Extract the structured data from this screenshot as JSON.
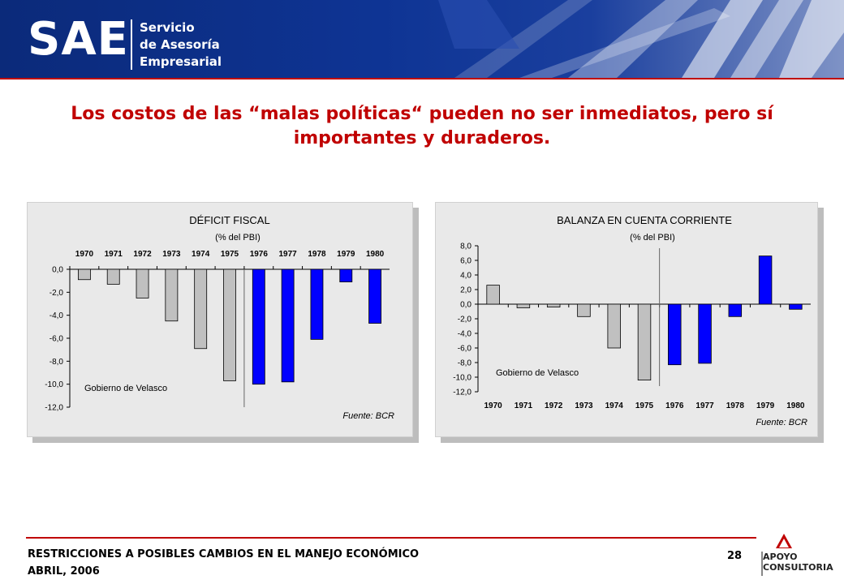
{
  "header": {
    "logo": "SAE",
    "subtitle_lines": [
      "Servicio",
      "de Asesoría",
      "Empresarial"
    ],
    "banner_color": "#0e3494"
  },
  "title": "Los costos de las “malas políticas“ pueden no ser inmediatos, pero sí importantes y duraderos.",
  "chart_data": [
    {
      "type": "bar",
      "title": "DÉFICIT FISCAL",
      "subtitle": "(% del PBI)",
      "categories": [
        "1970",
        "1971",
        "1972",
        "1973",
        "1974",
        "1975",
        "1976",
        "1977",
        "1978",
        "1979",
        "1980"
      ],
      "values": [
        -0.9,
        -1.3,
        -2.5,
        -4.5,
        -6.9,
        -9.7,
        -10.0,
        -9.8,
        -6.1,
        -1.1,
        -4.7
      ],
      "highlight_from": "1976",
      "colors": {
        "base": "#c0c0c0",
        "highlight": "#0000ff"
      },
      "ylim": [
        -12.0,
        0.0
      ],
      "yticks": [
        "0,0",
        "-2,0",
        "-4,0",
        "-6,0",
        "-8,0",
        "-10,0",
        "-12,0"
      ],
      "tick_values": [
        0,
        -2,
        -4,
        -6,
        -8,
        -10,
        -12
      ],
      "category_axis": "top",
      "divider_after": "1975",
      "annotation": "Gobierno de Velasco",
      "source": "Fuente: BCR",
      "grid": false
    },
    {
      "type": "bar",
      "title": "BALANZA EN CUENTA CORRIENTE",
      "subtitle": "(% del PBI)",
      "categories": [
        "1970",
        "1971",
        "1972",
        "1973",
        "1974",
        "1975",
        "1976",
        "1977",
        "1978",
        "1979",
        "1980"
      ],
      "values": [
        2.6,
        -0.5,
        -0.4,
        -1.7,
        -6.0,
        -10.4,
        -8.3,
        -8.1,
        -1.7,
        6.6,
        -0.7
      ],
      "highlight_from": "1976",
      "colors": {
        "base": "#c0c0c0",
        "highlight": "#0000ff"
      },
      "ylim": [
        -12.0,
        8.0
      ],
      "yticks": [
        "8,0",
        "6,0",
        "4,0",
        "2,0",
        "0,0",
        "-2,0",
        "-4,0",
        "-6,0",
        "-8,0",
        "-10,0",
        "-12,0"
      ],
      "tick_values": [
        8,
        6,
        4,
        2,
        0,
        -2,
        -4,
        -6,
        -8,
        -10,
        -12
      ],
      "category_axis": "bottom",
      "divider_after": "1975",
      "annotation": "Gobierno de Velasco",
      "source": "Fuente: BCR",
      "grid": false
    }
  ],
  "footer": {
    "line1": "RESTRICCIONES A POSIBLES CAMBIOS EN EL MANEJO ECONÓMICO",
    "line2": "ABRIL, 2006",
    "page_number": "28",
    "brand_line1": "APOYO",
    "brand_line2": "CONSULTORIA",
    "accent_color": "#c00000"
  }
}
